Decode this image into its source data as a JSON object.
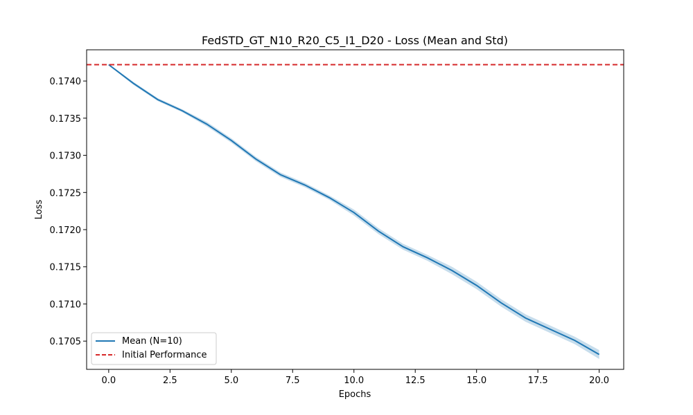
{
  "chart_data": {
    "type": "line",
    "title": "FedSTD_GT_N10_R20_C5_I1_D20 - Loss (Mean and Std)",
    "xlabel": "Epochs",
    "ylabel": "Loss",
    "xlim": [
      -0.9,
      21.0
    ],
    "ylim": [
      0.17012,
      0.17442
    ],
    "x_ticks": [
      0.0,
      2.5,
      5.0,
      7.5,
      10.0,
      12.5,
      15.0,
      17.5,
      20.0
    ],
    "x_tick_labels": [
      "0.0",
      "2.5",
      "5.0",
      "7.5",
      "10.0",
      "12.5",
      "15.0",
      "17.5",
      "20.0"
    ],
    "y_ticks": [
      0.1705,
      0.171,
      0.1715,
      0.172,
      0.1725,
      0.173,
      0.1735,
      0.174
    ],
    "y_tick_labels": [
      "0.1705",
      "0.1710",
      "0.1715",
      "0.1720",
      "0.1725",
      "0.1730",
      "0.1735",
      "0.1740"
    ],
    "grid": false,
    "legend_position": "lower-left",
    "series": [
      {
        "name": "Mean (N=10)",
        "color": "#1f77b4",
        "x": [
          0,
          1,
          2,
          3,
          4,
          5,
          6,
          7,
          8,
          9,
          10,
          11,
          12,
          13,
          14,
          15,
          16,
          17,
          18,
          19,
          20
        ],
        "values": [
          0.17422,
          0.17397,
          0.17375,
          0.1736,
          0.17342,
          0.1732,
          0.17295,
          0.17274,
          0.1726,
          0.17243,
          0.17223,
          0.17198,
          0.17177,
          0.17162,
          0.17145,
          0.17125,
          0.171015,
          0.17081,
          0.17066,
          0.17051,
          0.17032
        ],
        "std": [
          1e-05,
          2e-05,
          2e-05,
          2e-05,
          3e-05,
          3e-05,
          3e-05,
          3e-05,
          3e-05,
          3e-05,
          4e-05,
          4e-05,
          4e-05,
          4e-05,
          5e-05,
          5e-05,
          5e-05,
          5e-05,
          5e-05,
          5e-05,
          6e-05
        ],
        "band_color": "#1f77b4",
        "band_opacity": 0.25
      }
    ],
    "reference_line": {
      "name": "Initial Performance",
      "y": 0.17422,
      "color": "#d62728",
      "style": "dashed"
    }
  }
}
